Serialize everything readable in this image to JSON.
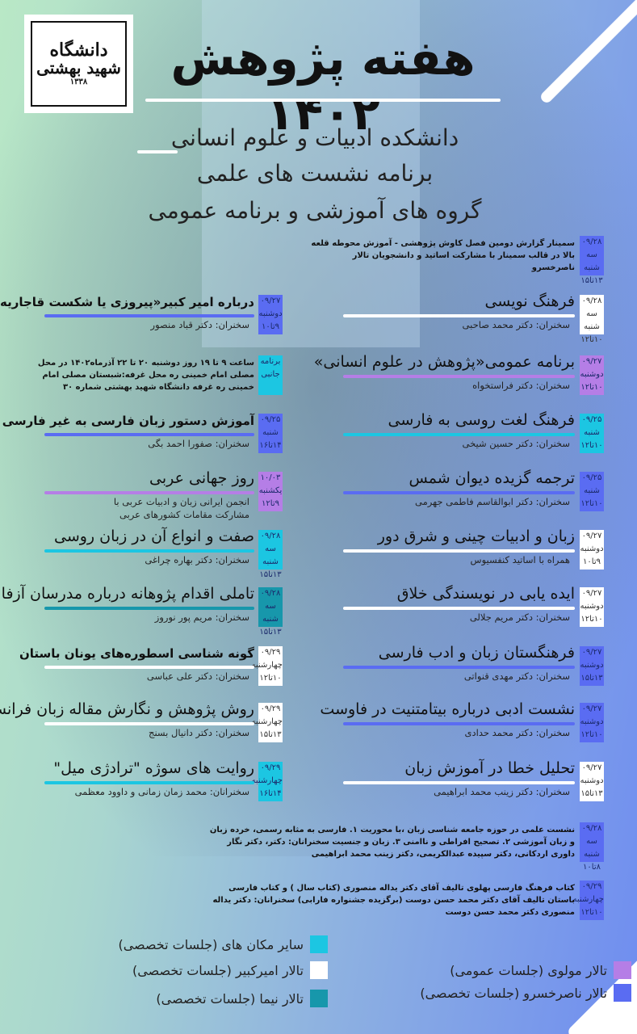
{
  "logo": {
    "line1": "دانشگاه",
    "line2": "شهید بهشتی",
    "year": "۱۳۳۸"
  },
  "header": {
    "title": "هفته پژوهش ۱۴۰۲",
    "subtitle1": "دانشکده ادبیات و علوم انسانی",
    "subtitle2": "برنامه نشست های علمی",
    "subtitle3": "گروه های آموزشی و برنامه عمومی"
  },
  "colors": {
    "blue": "#5a6cf2",
    "white": "#ffffff",
    "purple": "#b57ee6",
    "cyan": "#1cc6e2",
    "teal": "#1797ab"
  },
  "events": [
    {
      "col": "right",
      "date": "۰۹/۲۸",
      "day": "سه شنبه",
      "time": "۱۳تا۱۵",
      "color": "blue",
      "paragraph": "سمینار گزارش دومین فصل کاوش پژوهشی - آموزش محوطه قلعه بالا در قالب سمینار با مشارکت اساتید و دانشجویان تالار ناصرخسرو"
    },
    {
      "col": "right",
      "date": "۰۹/۲۸",
      "day": "سه شنبه",
      "time": "۱۰تا۱۲",
      "color": "white",
      "title": "فرهنگ نویسی",
      "speaker": "سخنران: دکتر محمد صاحبی"
    },
    {
      "col": "right",
      "date": "۰۹/۲۷",
      "day": "دوشنبه",
      "time": "۱۰تا۱۲",
      "color": "purple",
      "title": "برنامه عمومی«پژوهش در علوم انسانی»",
      "speaker": "سخنران:  دکتر فراستخواه"
    },
    {
      "col": "right",
      "date": "۰۹/۲۵",
      "day": "شنبه",
      "time": "۱۰تا۱۲",
      "color": "cyan",
      "title": "فرهنگ لغت روسی به فارسی",
      "speaker": "سخنران: دکتر حسین شیخی"
    },
    {
      "col": "right",
      "date": "۰۹/۲۵",
      "day": "شنبه",
      "time": "۱۰تا۱۲",
      "color": "blue",
      "title": "ترجمه گزیده دیوان شمس",
      "speaker": "سخنران: دکتر ابوالقاسم فاطمی جهرمی"
    },
    {
      "col": "right",
      "date": "۰۹/۲۷",
      "day": "دوشنبه",
      "time": "۹تا۱۰",
      "color": "white",
      "title": "زبان و ادبیات چینی و شرق دور",
      "speaker": "همراه با اساتید کنفسیوس"
    },
    {
      "col": "right",
      "date": "۰۹/۲۷",
      "day": "دوشنبه",
      "time": "۱۰تا۱۲",
      "color": "white",
      "title": "ایده یابی در نویسندگی خلاق",
      "speaker": "سخنران: دکتر مریم جلالی"
    },
    {
      "col": "right",
      "date": "۰۹/۲۷",
      "day": "دوشنبه",
      "time": "۱۳تا۱۵",
      "color": "blue",
      "title": "فرهنگستان زبان و ادب فارسی",
      "speaker": "سخنران: دکتر مهدی قنواتی"
    },
    {
      "col": "right",
      "date": "۰۹/۲۷",
      "day": "دوشنبه",
      "time": "۱۰تا۱۲",
      "color": "blue",
      "title": "نشست ادبی درباره بیتامتنیت در فاوست",
      "speaker": "سخنران: دکتر محمد حدادی"
    },
    {
      "col": "right",
      "date": "۰۹/۲۷",
      "day": "دوشنبه",
      "time": "۱۳تا۱۵",
      "color": "white",
      "title": "تحلیل خطا در آموزش زبان",
      "speaker": "سخنران: دکتر زینب محمد ابراهیمی"
    },
    {
      "col": "right",
      "date": "۰۹/۲۸",
      "day": "سه شنبه",
      "time": "۸تا۱۰",
      "color": "blue",
      "paragraph": "نشست علمی در حوزه جامعه شناسی زبان ،با محوریت  ۱. فارسی به مثابه رسمی، خرده زبان و زبان آموزشی ۲. تصحیح افراطی و ناامنی  ۳. زبان و جنسیت سخنرانان: دکتر، دکتر نگار داوری اردکانی، دکتر سپیده عبدالکریمی، دکتر زینب محمد ابراهیمی"
    },
    {
      "col": "right",
      "date": "۰۹/۲۹",
      "day": "چهارشنبه",
      "time": "۱۰تا۱۲",
      "color": "blue",
      "paragraph": "کتاب فرهنگ فارسی پهلوی تالیف آقای دکتر یداله منصوری (کتاب سال ) و کتاب فارسی باستان تالیف آقای دکتر محمد حسن دوست (برگزیده جشنواره فارابی) سخنرانان: دکتر یداله منصوری دکتر محمد حسن دوست"
    },
    {
      "col": "left",
      "date": "۰۹/۲۷",
      "day": "دوشنبه",
      "time": "۹تا۱۰",
      "color": "blue",
      "bold": true,
      "title": "درباره امیر کبیر«پیروزی یا شکست قاجاریه»",
      "speaker": "سخنران: دکتر قباد منصور"
    },
    {
      "col": "left",
      "date": "برنامه",
      "day": "جانبی",
      "time": "",
      "color": "cyan",
      "paragraph": "ساعت ۹ تا ۱۹ روز دوشنبه ۲۰ تا ۲۲ آذرماه۱۴۰۲ در محل مصلی امام خمینی ره محل غرفه:شبستان مصلی امام خمینی ره غرفه دانشگاه شهید بهشتی شماره ۳۰"
    },
    {
      "col": "left",
      "date": "۰۹/۲۵",
      "day": "شنبه",
      "time": "۱۴تا۱۶",
      "color": "blue",
      "bold": true,
      "title": "آموزش دستور زبان فارسی به غیر فارسی زبانان",
      "speaker": "سخنران: صفورا احمد بگی"
    },
    {
      "col": "left",
      "date": "۱۰/۰۳",
      "day": "یکشنبه",
      "time": "۹تا۱۲",
      "color": "purple",
      "title": "روز جهانی عربی",
      "speaker": "انجمن ایرانی زبان و ادبیات عربی با",
      "extra": "مشارکت مقامات کشورهای عربی"
    },
    {
      "col": "left",
      "date": "۰۹/۲۸",
      "day": "سه شنبه",
      "time": "۱۳تا۱۵",
      "color": "cyan",
      "title": "صفت و انواع آن در زبان روسی",
      "speaker": "سخنران: دکتر بهاره چراغی"
    },
    {
      "col": "left",
      "date": "۰۹/۲۸",
      "day": "سه شنبه",
      "time": "۱۳تا۱۵",
      "color": "teal",
      "title": "تاملی اقدام پژوهانه درباره مدرسان آزفا",
      "speaker": "سخنران: مریم پور نوروز"
    },
    {
      "col": "left",
      "date": "۰۹/۲۹",
      "day": "چهارشنبه",
      "time": "۱۰تا۱۲",
      "color": "white",
      "bold": true,
      "title": "گونه شناسی اسطوره‌های  یونان   باستان",
      "speaker": "سخنران: دکتر علی عباسی"
    },
    {
      "col": "left",
      "date": "۰۹/۲۹",
      "day": "چهارشنبه",
      "time": "۱۳تا۱۵",
      "color": "white",
      "title": "روش پژوهش و نگارش مقاله زبان فرانسه",
      "speaker": "سخنران: دکتر دانیال بسنج"
    },
    {
      "col": "left",
      "date": "۰۹/۲۹",
      "day": "چهارشنبه",
      "time": "۱۴تا۱۶",
      "color": "cyan",
      "title": "روایت های سوژه \"ترادژی میل\"",
      "speaker": "سخنرانان: محمد زمان زمانی و داوود معظمی"
    }
  ],
  "legend": [
    {
      "label": "سایر مکان های (جلسات تخصصی)",
      "color": "cyan"
    },
    {
      "label": "تالار امیرکبیر (جلسات تخصصی)",
      "color": "white"
    },
    {
      "label": "تالار نیما (جلسات تخصصی)",
      "color": "teal"
    },
    {
      "label": "تالار مولوی (جلسات عمومی)",
      "color": "purple"
    },
    {
      "label": "تالار ناصرخسرو (جلسات تخصصی)",
      "color": "blue"
    }
  ]
}
